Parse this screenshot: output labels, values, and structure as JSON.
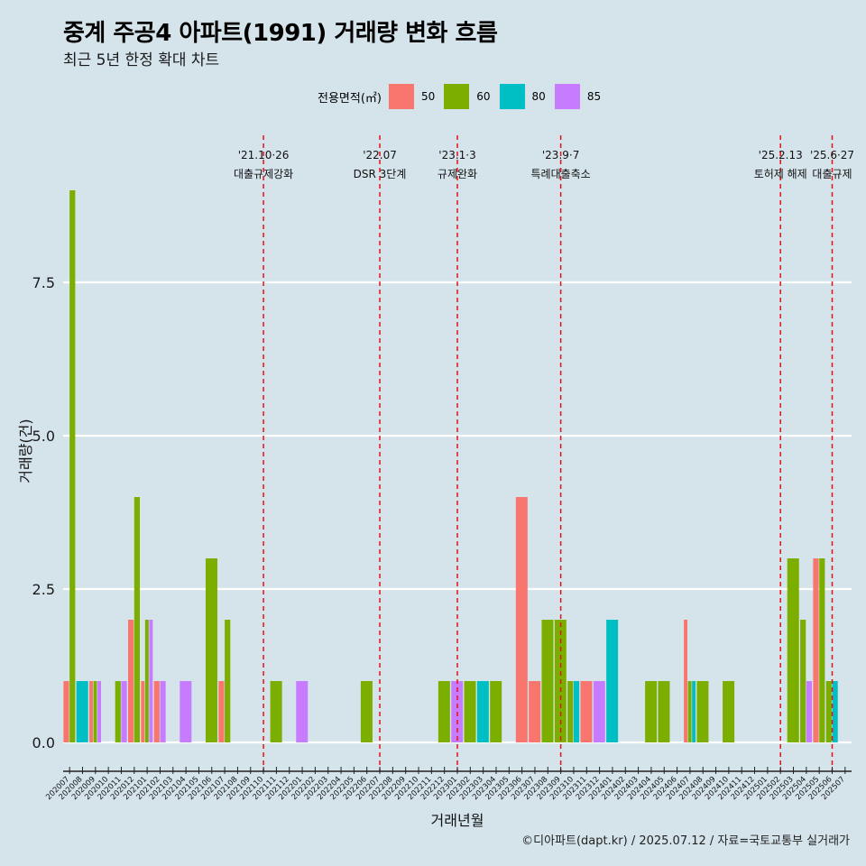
{
  "title": "중계 주공4 아파트(1991) 거래량 변화 흐름",
  "subtitle": "최근 5년 한정 확대 차트",
  "caption": "©디아파트(dapt.kr) / 2025.07.12 / 자료=국토교통부 실거래가",
  "legend": {
    "title": "전용면적(㎡)",
    "items": [
      {
        "label": "50",
        "color": "#f8766d"
      },
      {
        "label": "60",
        "color": "#7cae00"
      },
      {
        "label": "80",
        "color": "#00bfc4"
      },
      {
        "label": "85",
        "color": "#c77cff"
      }
    ]
  },
  "chart_data": {
    "type": "bar",
    "xlabel": "거래년월",
    "ylabel": "거래량(건)",
    "ylim": [
      0,
      9
    ],
    "yticks": [
      "0.0",
      "2.5",
      "5.0",
      "7.5"
    ],
    "grid": "horizontal",
    "categories": [
      "202007",
      "202008",
      "202009",
      "202010",
      "202011",
      "202012",
      "202101",
      "202102",
      "202103",
      "202104",
      "202105",
      "202106",
      "202107",
      "202108",
      "202109",
      "202110",
      "202111",
      "202112",
      "202201",
      "202202",
      "202203",
      "202204",
      "202205",
      "202206",
      "202207",
      "202208",
      "202209",
      "202210",
      "202211",
      "202212",
      "202301",
      "202302",
      "202303",
      "202304",
      "202305",
      "202306",
      "202307",
      "202308",
      "202309",
      "202310",
      "202311",
      "202312",
      "202401",
      "202402",
      "202403",
      "202404",
      "202405",
      "202406",
      "202407",
      "202408",
      "202409",
      "202410",
      "202411",
      "202412",
      "202501",
      "202502",
      "202503",
      "202504",
      "202505",
      "202506",
      "202507"
    ],
    "series": [
      {
        "name": "50",
        "color": "#f8766d",
        "values": {
          "202007": 1,
          "202009": 1,
          "202012": 2,
          "202101": 1,
          "202102": 1,
          "202107": 1,
          "202306": 4,
          "202307": 1,
          "202311": 1,
          "202407": 2,
          "202505": 3
        }
      },
      {
        "name": "60",
        "color": "#7cae00",
        "values": {
          "202007": 9,
          "202009": 1,
          "202011": 1,
          "202012": 4,
          "202101": 2,
          "202106": 3,
          "202107": 2,
          "202111": 1,
          "202206": 1,
          "202212": 1,
          "202302": 1,
          "202304": 1,
          "202308": 2,
          "202309": 2,
          "202310": 1,
          "202404": 1,
          "202405": 1,
          "202407": 1,
          "202408": 1,
          "202410": 1,
          "202503": 3,
          "202504": 2,
          "202505": 3,
          "202506": 1
        }
      },
      {
        "name": "80",
        "color": "#00bfc4",
        "values": {
          "202008": 1,
          "202303": 1,
          "202310": 1,
          "202401": 2,
          "202407": 1,
          "202506": 1
        }
      },
      {
        "name": "85",
        "color": "#c77cff",
        "values": {
          "202009": 1,
          "202011": 1,
          "202101": 2,
          "202102": 1,
          "202104": 1,
          "202201": 1,
          "202301": 1,
          "202312": 1,
          "202504": 1
        }
      }
    ],
    "events": [
      {
        "month": "202110",
        "date": "'21.10·26",
        "label": "대출규제강화"
      },
      {
        "month": "202207",
        "date": "'22.07",
        "label": "DSR 3단계"
      },
      {
        "month": "202301",
        "date": "'23.1·3",
        "label": "규제완화"
      },
      {
        "month": "202309",
        "date": "'23.9·7",
        "label": "특례대출축소"
      },
      {
        "month": "202502",
        "date": "'25.2.13",
        "label": "토허제 해제"
      },
      {
        "month": "202506",
        "date": "'25.6·27",
        "label": "대출규제"
      }
    ]
  }
}
